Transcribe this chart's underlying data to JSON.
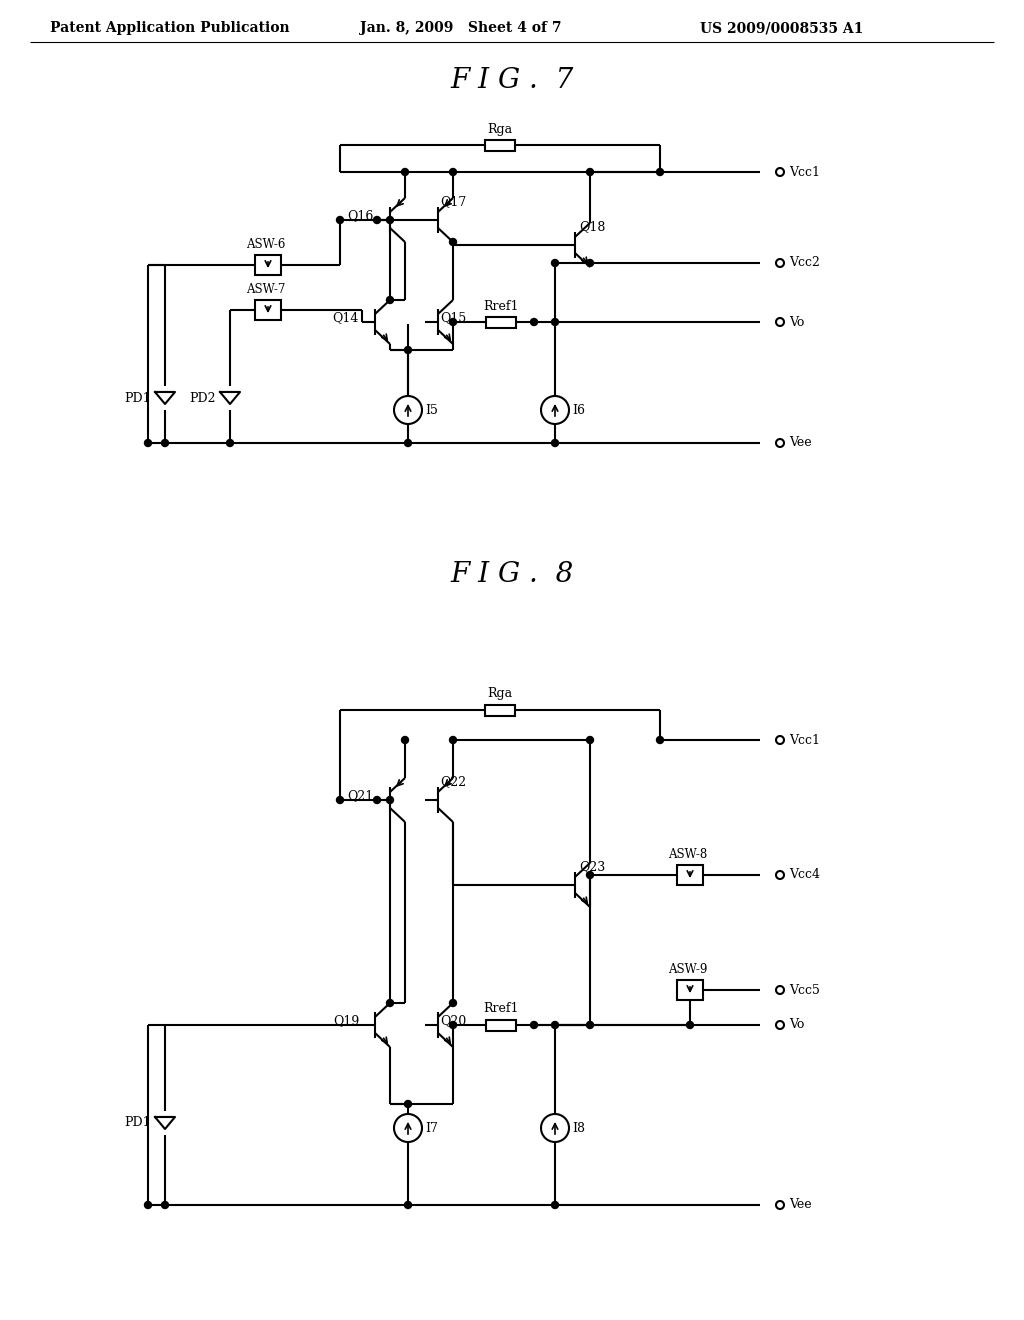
{
  "bg_color": "#ffffff",
  "header_text": "Patent Application Publication",
  "header_date": "Jan. 8, 2009   Sheet 4 of 7",
  "header_patent": "US 2009/0008535 A1",
  "fig7_title": "F I G .  7",
  "fig8_title": "F I G .  8"
}
